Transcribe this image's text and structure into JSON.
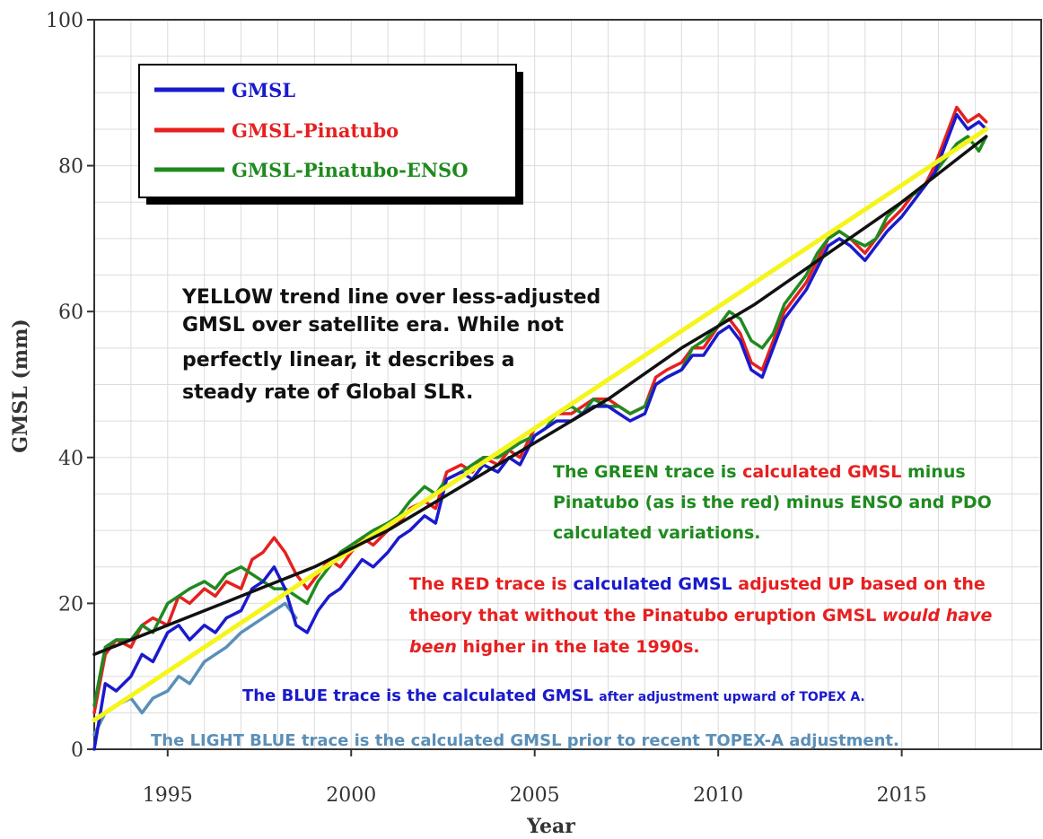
{
  "chart_data": {
    "type": "line",
    "title": "",
    "xlabel": "Year",
    "ylabel": "GMSL (mm)",
    "xlim": [
      1993,
      2018.8
    ],
    "ylim": [
      0,
      100
    ],
    "xticks": [
      1995,
      2000,
      2005,
      2010,
      2015
    ],
    "yticks": [
      0,
      20,
      40,
      60,
      80,
      100
    ],
    "grid": true,
    "legend_position": "top-left",
    "legend": [
      {
        "label": "GMSL",
        "color": "#1a1acc"
      },
      {
        "label": "GMSL-Pinatubo",
        "color": "#e62020"
      },
      {
        "label": "GMSL-Pinatubo-ENSO",
        "color": "#1f8a1f"
      }
    ],
    "series": [
      {
        "name": "GMSL-Pinatubo",
        "color": "#e62020",
        "x": [
          1993.0,
          1993.3,
          1993.6,
          1994.0,
          1994.3,
          1994.6,
          1995.0,
          1995.3,
          1995.6,
          1996.0,
          1996.3,
          1996.6,
          1997.0,
          1997.3,
          1997.6,
          1997.9,
          1998.2,
          1998.5,
          1998.8,
          1999.1,
          1999.4,
          1999.7,
          2000.0,
          2000.3,
          2000.6,
          2001.0,
          2001.3,
          2001.6,
          2002.0,
          2002.3,
          2002.6,
          2003.0,
          2003.3,
          2003.6,
          2004.0,
          2004.3,
          2004.6,
          2005.0,
          2005.3,
          2005.6,
          2006.0,
          2006.3,
          2006.6,
          2007.0,
          2007.3,
          2007.6,
          2008.0,
          2008.3,
          2008.6,
          2009.0,
          2009.3,
          2009.6,
          2010.0,
          2010.3,
          2010.6,
          2010.9,
          2011.2,
          2011.5,
          2011.8,
          2012.1,
          2012.4,
          2012.7,
          2013.0,
          2013.3,
          2013.6,
          2014.0,
          2014.3,
          2014.6,
          2015.0,
          2015.3,
          2015.6,
          2015.9,
          2016.2,
          2016.5,
          2016.8,
          2017.1,
          2017.3
        ],
        "values": [
          5,
          13,
          15,
          14,
          17,
          18,
          17,
          21,
          20,
          22,
          21,
          23,
          22,
          26,
          27,
          29,
          27,
          24,
          22,
          24,
          26,
          25,
          27,
          29,
          28,
          30,
          31,
          33,
          34,
          33,
          38,
          39,
          38,
          40,
          39,
          41,
          40,
          44,
          45,
          46,
          46,
          47,
          48,
          48,
          47,
          46,
          47,
          51,
          52,
          53,
          55,
          55,
          58,
          59,
          57,
          53,
          52,
          56,
          60,
          62,
          64,
          67,
          70,
          71,
          70,
          68,
          70,
          72,
          74,
          76,
          77,
          80,
          84,
          88,
          86,
          87,
          86
        ]
      },
      {
        "name": "GMSL-Pinatubo-ENSO",
        "color": "#1f8a1f",
        "x": [
          1993.0,
          1993.3,
          1993.6,
          1994.0,
          1994.3,
          1994.6,
          1995.0,
          1995.3,
          1995.6,
          1996.0,
          1996.3,
          1996.6,
          1997.0,
          1997.3,
          1997.6,
          1997.9,
          1998.2,
          1998.5,
          1998.8,
          1999.1,
          1999.4,
          1999.7,
          2000.0,
          2000.3,
          2000.6,
          2001.0,
          2001.3,
          2001.6,
          2002.0,
          2002.3,
          2002.6,
          2003.0,
          2003.3,
          2003.6,
          2004.0,
          2004.3,
          2004.6,
          2005.0,
          2005.3,
          2005.6,
          2006.0,
          2006.3,
          2006.6,
          2007.0,
          2007.3,
          2007.6,
          2008.0,
          2008.3,
          2008.6,
          2009.0,
          2009.3,
          2009.6,
          2010.0,
          2010.3,
          2010.6,
          2010.9,
          2011.2,
          2011.5,
          2011.8,
          2012.1,
          2012.4,
          2012.7,
          2013.0,
          2013.3,
          2013.6,
          2014.0,
          2014.3,
          2014.6,
          2015.0,
          2015.3,
          2015.6,
          2015.9,
          2016.2,
          2016.5,
          2016.8,
          2017.1,
          2017.3
        ],
        "values": [
          6,
          14,
          15,
          15,
          17,
          16,
          20,
          21,
          22,
          23,
          22,
          24,
          25,
          24,
          23,
          22,
          22,
          21,
          20,
          23,
          25,
          27,
          28,
          29,
          30,
          31,
          32,
          34,
          36,
          35,
          37,
          38,
          39,
          40,
          40,
          41,
          42,
          43,
          44,
          46,
          47,
          46,
          48,
          47,
          47,
          46,
          47,
          50,
          51,
          52,
          55,
          56,
          58,
          60,
          59,
          56,
          55,
          57,
          61,
          63,
          65,
          68,
          70,
          71,
          70,
          69,
          70,
          73,
          75,
          76,
          77,
          79,
          81,
          83,
          84,
          82,
          84
        ]
      },
      {
        "name": "GMSL",
        "color": "#1a1acc",
        "x": [
          1993.0,
          1993.3,
          1993.6,
          1994.0,
          1994.3,
          1994.6,
          1995.0,
          1995.3,
          1995.6,
          1996.0,
          1996.3,
          1996.6,
          1997.0,
          1997.3,
          1997.6,
          1997.9,
          1998.2,
          1998.5,
          1998.8,
          1999.1,
          1999.4,
          1999.7,
          2000.0,
          2000.3,
          2000.6,
          2001.0,
          2001.3,
          2001.6,
          2002.0,
          2002.3,
          2002.6,
          2003.0,
          2003.3,
          2003.6,
          2004.0,
          2004.3,
          2004.6,
          2005.0,
          2005.3,
          2005.6,
          2006.0,
          2006.3,
          2006.6,
          2007.0,
          2007.3,
          2007.6,
          2008.0,
          2008.3,
          2008.6,
          2009.0,
          2009.3,
          2009.6,
          2010.0,
          2010.3,
          2010.6,
          2010.9,
          2011.2,
          2011.5,
          2011.8,
          2012.1,
          2012.4,
          2012.7,
          2013.0,
          2013.3,
          2013.6,
          2014.0,
          2014.3,
          2014.6,
          2015.0,
          2015.3,
          2015.6,
          2015.9,
          2016.2,
          2016.5,
          2016.8,
          2017.1,
          2017.3
        ],
        "values": [
          0,
          9,
          8,
          10,
          13,
          12,
          16,
          17,
          15,
          17,
          16,
          18,
          19,
          22,
          23,
          25,
          22,
          17,
          16,
          19,
          21,
          22,
          24,
          26,
          25,
          27,
          29,
          30,
          32,
          31,
          37,
          38,
          37,
          39,
          38,
          40,
          39,
          43,
          44,
          45,
          45,
          46,
          47,
          47,
          46,
          45,
          46,
          50,
          51,
          52,
          54,
          54,
          57,
          58,
          56,
          52,
          51,
          55,
          59,
          61,
          63,
          66,
          69,
          70,
          69,
          67,
          69,
          71,
          73,
          75,
          77,
          79,
          83,
          87,
          85,
          86,
          85
        ]
      },
      {
        "name": "LIGHT BLUE",
        "color": "#5a8fb8",
        "x": [
          1993.0,
          1993.3,
          1993.6,
          1994.0,
          1994.3,
          1994.6,
          1995.0,
          1995.3,
          1995.6,
          1996.0,
          1996.3,
          1996.6,
          1997.0,
          1997.3,
          1997.6,
          1997.9,
          1998.2,
          1998.5
        ],
        "values": [
          2,
          5,
          6,
          7,
          5,
          7,
          8,
          10,
          9,
          12,
          13,
          14,
          16,
          17,
          18,
          19,
          20,
          18
        ]
      },
      {
        "name": "YELLOW",
        "color": "#f5f51c",
        "x": [
          1993.0,
          2017.3
        ],
        "values": [
          4,
          85
        ]
      },
      {
        "name": "BLACK",
        "color": "#111111",
        "x": [
          1993.0,
          1995.0,
          1997.0,
          1999.0,
          2001.0,
          2003.0,
          2005.0,
          2007.0,
          2009.0,
          2011.0,
          2013.0,
          2015.0,
          2017.3
        ],
        "values": [
          13,
          17,
          21,
          25,
          30,
          36,
          42,
          48,
          55,
          61,
          68,
          75,
          84
        ]
      }
    ],
    "annotations": {
      "yellow_note": [
        "YELLOW trend line over less-adjusted",
        "GMSL over satellite era.  While not",
        "perfectly linear, it describes a",
        "steady rate of Global SLR."
      ],
      "green_note": {
        "line1": {
          "p1": "The GREEN  trace is ",
          "p2": "calculated GMSL",
          "p3": " minus"
        },
        "line2": "Pinatubo (as is the red) minus ENSO and PDO",
        "line3": "calculated  variations."
      },
      "red_note": {
        "line1": {
          "p1": "The RED trace is ",
          "p2": "calculated GMSL",
          "p3": " adjusted UP based on the"
        },
        "line2": {
          "p1": "theory that without the Pinatubo eruption GMSL ",
          "p2": "would have"
        },
        "line3": {
          "p1": "been",
          "p2": " higher in the late 1990s."
        }
      },
      "blue_note": {
        "p1": "The BLUE trace is the calculated GMSL ",
        "p2": "after adjustment upward of TOPEX A."
      },
      "lightblue_note": "The LIGHT BLUE trace is the calculated GMSL prior to recent TOPEX-A adjustment."
    }
  }
}
